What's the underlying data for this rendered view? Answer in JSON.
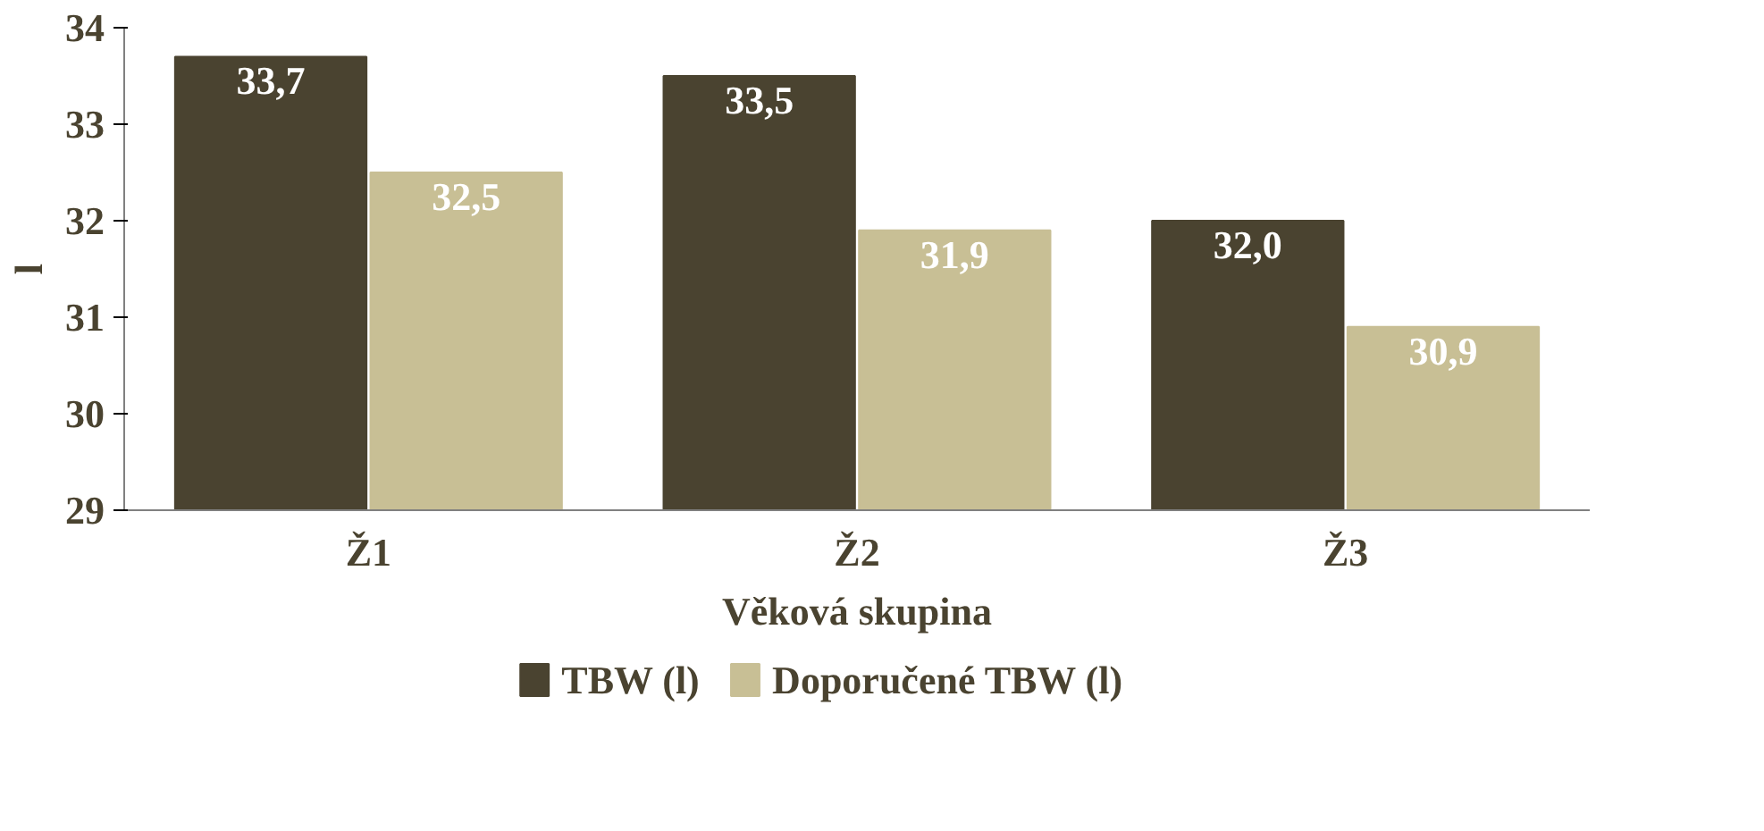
{
  "chart_data": {
    "type": "bar",
    "xlabel": "Věková skupina",
    "ylabel": "l",
    "categories": [
      "Ž1",
      "Ž2",
      "Ž3"
    ],
    "series": [
      {
        "name": "TBW (l)",
        "color": "#4a4330",
        "values": [
          33.7,
          33.5,
          32.0
        ],
        "value_labels": [
          "33,7",
          "33,5",
          "32,0"
        ]
      },
      {
        "name": "Doporučené TBW (l)",
        "color": "#c8bf95",
        "values": [
          32.5,
          31.9,
          30.9
        ],
        "value_labels": [
          "32,5",
          "31,9",
          "30,9"
        ]
      }
    ],
    "ylim": [
      29,
      34
    ],
    "yticks": [
      29,
      30,
      31,
      32,
      33,
      34
    ],
    "grid": false,
    "legend": "bottom"
  }
}
